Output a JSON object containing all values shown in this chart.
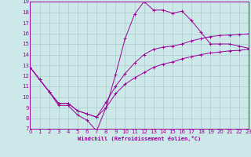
{
  "bg_color": "#cce8e8",
  "line_color": "#990099",
  "grid_color": "#aacccc",
  "xlabel": "Windchill (Refroidissement éolien,°C)",
  "xlabel_color": "#990099",
  "ylim": [
    7,
    19
  ],
  "xlim": [
    0,
    23
  ],
  "yticks": [
    7,
    8,
    9,
    10,
    11,
    12,
    13,
    14,
    15,
    16,
    17,
    18,
    19
  ],
  "xticks": [
    0,
    1,
    2,
    3,
    4,
    5,
    6,
    7,
    8,
    9,
    10,
    11,
    12,
    13,
    14,
    15,
    16,
    17,
    18,
    19,
    20,
    21,
    22,
    23
  ],
  "curve1_x": [
    0,
    1,
    2,
    3,
    4,
    5,
    6,
    7,
    8,
    9,
    10,
    11,
    12,
    13,
    14,
    15,
    16,
    17,
    18,
    19,
    20,
    21,
    22,
    23
  ],
  "curve1_y": [
    12.8,
    11.65,
    10.5,
    9.2,
    9.2,
    8.3,
    7.8,
    6.8,
    9.0,
    12.1,
    15.5,
    17.8,
    19.0,
    18.2,
    18.2,
    17.9,
    18.1,
    17.2,
    16.1,
    15.0,
    15.0,
    15.0,
    14.8,
    14.6
  ],
  "curve2_x": [
    0,
    1,
    2,
    3,
    4,
    5,
    6,
    7,
    8,
    9,
    10,
    11,
    12,
    13,
    14,
    15,
    16,
    17,
    18,
    19,
    20,
    21,
    22,
    23
  ],
  "curve2_y": [
    12.8,
    11.65,
    10.5,
    9.4,
    9.4,
    8.7,
    8.4,
    8.1,
    9.5,
    11.0,
    12.2,
    13.2,
    14.0,
    14.5,
    14.7,
    14.8,
    15.0,
    15.3,
    15.5,
    15.7,
    15.8,
    15.85,
    15.9,
    15.95
  ],
  "curve3_x": [
    0,
    1,
    2,
    3,
    4,
    5,
    6,
    7,
    8,
    9,
    10,
    11,
    12,
    13,
    14,
    15,
    16,
    17,
    18,
    19,
    20,
    21,
    22,
    23
  ],
  "curve3_y": [
    12.8,
    11.65,
    10.5,
    9.4,
    9.4,
    8.7,
    8.4,
    8.1,
    9.0,
    10.3,
    11.2,
    11.8,
    12.3,
    12.8,
    13.1,
    13.3,
    13.6,
    13.8,
    14.0,
    14.15,
    14.25,
    14.35,
    14.4,
    14.5
  ]
}
